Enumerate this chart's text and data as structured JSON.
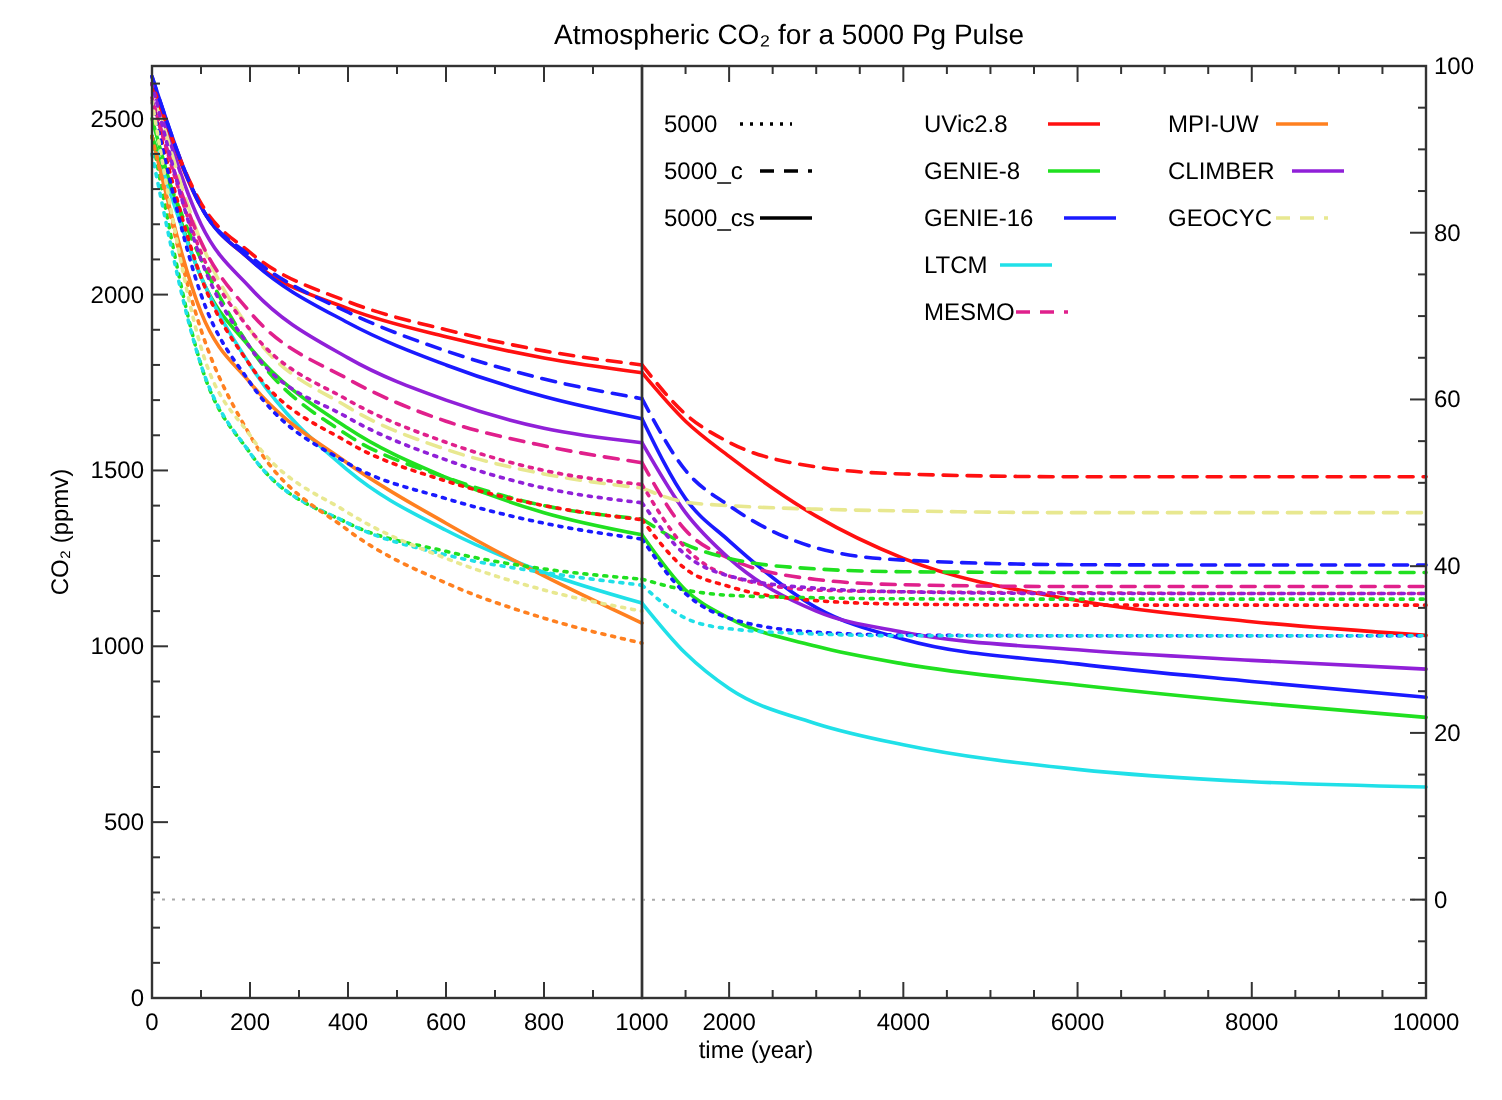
{
  "chart_data": [
    {
      "type": "line",
      "ylabel": "CO₂ (ppmv)",
      "x": [
        0,
        100,
        200,
        400,
        600,
        800,
        1000
      ],
      "xlim": [
        0,
        1000
      ],
      "xticks": [
        0,
        {
          "value": 100,
          "label": null
        },
        200,
        {
          "value": 300,
          "label": null
        },
        400,
        {
          "value": 500,
          "label": null
        },
        600,
        {
          "value": 700,
          "label": null
        },
        800,
        {
          "value": 900,
          "label": null
        },
        1000
      ],
      "ylim": [
        0,
        2650
      ],
      "yticks": [
        0,
        {
          "value": 100,
          "label": null
        },
        {
          "value": 200,
          "label": null
        },
        {
          "value": 300,
          "label": null
        },
        {
          "value": 400,
          "label": null
        },
        500,
        {
          "value": 600,
          "label": null
        },
        {
          "value": 700,
          "label": null
        },
        {
          "value": 800,
          "label": null
        },
        {
          "value": 900,
          "label": null
        },
        1000,
        {
          "value": 1100,
          "label": null
        },
        {
          "value": 1200,
          "label": null
        },
        {
          "value": 1300,
          "label": null
        },
        {
          "value": 1400,
          "label": null
        },
        1500,
        {
          "value": 1600,
          "label": null
        },
        {
          "value": 1700,
          "label": null
        },
        {
          "value": 1800,
          "label": null
        },
        {
          "value": 1900,
          "label": null
        },
        2000,
        {
          "value": 2100,
          "label": null
        },
        {
          "value": 2200,
          "label": null
        },
        {
          "value": 2300,
          "label": null
        },
        {
          "value": 2400,
          "label": null
        },
        2500,
        {
          "value": 2600,
          "label": null
        }
      ],
      "ref_lines": [
        {
          "axis": "y",
          "value": 280,
          "color": "#aaaaaa",
          "line_style": "dotted"
        }
      ],
      "grid": false,
      "series": [
        {
          "color": "#ff1010",
          "line_style": "solid",
          "values": [
            2600,
            2250,
            2100,
            1960,
            1880,
            1820,
            1778
          ]
        },
        {
          "color": "#20e020",
          "line_style": "solid",
          "values": [
            2500,
            2050,
            1850,
            1620,
            1480,
            1380,
            1317
          ]
        },
        {
          "color": "#1a1aff",
          "line_style": "solid",
          "values": [
            2620,
            2250,
            2100,
            1920,
            1800,
            1710,
            1647
          ]
        },
        {
          "color": "#20e0e8",
          "line_style": "solid",
          "values": [
            2450,
            2050,
            1800,
            1500,
            1330,
            1210,
            1123
          ]
        },
        {
          "color": "#ff8020",
          "line_style": "solid",
          "values": [
            2450,
            1950,
            1750,
            1520,
            1350,
            1200,
            1066
          ]
        },
        {
          "color": "#9020d8",
          "line_style": "solid",
          "values": [
            2600,
            2200,
            2020,
            1820,
            1700,
            1620,
            1579
          ]
        },
        {
          "color": "#e8e890",
          "line_style": "dashed",
          "values": [
            2600,
            2150,
            1900,
            1680,
            1560,
            1490,
            1450
          ]
        },
        {
          "color": "#ff1010",
          "line_style": "dashed",
          "values": [
            2600,
            2260,
            2120,
            1980,
            1900,
            1840,
            1800
          ]
        },
        {
          "color": "#20e020",
          "line_style": "dashed",
          "values": [
            2450,
            2100,
            1850,
            1600,
            1480,
            1400,
            1362
          ]
        },
        {
          "color": "#1a1aff",
          "line_style": "dashed",
          "values": [
            2620,
            2250,
            2110,
            1950,
            1840,
            1760,
            1704
          ]
        },
        {
          "color": "#e0208c",
          "line_style": "dashed",
          "values": [
            2550,
            2150,
            1950,
            1760,
            1640,
            1570,
            1522
          ]
        },
        {
          "color": "#ff1010",
          "line_style": "dotted",
          "values": [
            2550,
            2050,
            1800,
            1580,
            1470,
            1400,
            1360
          ]
        },
        {
          "color": "#20e020",
          "line_style": "dotted",
          "values": [
            2450,
            1800,
            1550,
            1350,
            1270,
            1220,
            1191
          ]
        },
        {
          "color": "#1a1aff",
          "line_style": "dotted",
          "values": [
            2550,
            2000,
            1750,
            1520,
            1420,
            1350,
            1305
          ]
        },
        {
          "color": "#20e0e8",
          "line_style": "dotted",
          "values": [
            2400,
            1800,
            1550,
            1350,
            1260,
            1210,
            1174
          ]
        },
        {
          "color": "#e0208c",
          "line_style": "dotted",
          "values": [
            2560,
            2120,
            1900,
            1700,
            1580,
            1500,
            1460
          ]
        },
        {
          "color": "#9020d8",
          "line_style": "dotted",
          "values": [
            2600,
            2100,
            1850,
            1650,
            1530,
            1450,
            1408
          ]
        },
        {
          "color": "#ff8020",
          "line_style": "dotted",
          "values": [
            2450,
            1900,
            1600,
            1330,
            1180,
            1080,
            1009
          ]
        },
        {
          "color": "#e8e890",
          "line_style": "dotted",
          "values": [
            2550,
            1850,
            1600,
            1380,
            1250,
            1160,
            1100
          ]
        }
      ]
    },
    {
      "type": "line",
      "title": "Atmospheric CO₂ for a 5000 Pg Pulse",
      "xlabel": "time (year)",
      "x": [
        1000,
        1500,
        2000,
        3000,
        4000,
        6000,
        8000,
        10000
      ],
      "xlim": [
        1000,
        10000
      ],
      "xticks": [
        {
          "value": 1500,
          "label": null
        },
        2000,
        {
          "value": 2500,
          "label": null
        },
        {
          "value": 3000,
          "label": null
        },
        {
          "value": 3500,
          "label": null
        },
        4000,
        {
          "value": 4500,
          "label": null
        },
        {
          "value": 5000,
          "label": null
        },
        {
          "value": 5500,
          "label": null
        },
        6000,
        {
          "value": 6500,
          "label": null
        },
        {
          "value": 7000,
          "label": null
        },
        {
          "value": 7500,
          "label": null
        },
        8000,
        {
          "value": 8500,
          "label": null
        },
        {
          "value": 9000,
          "label": null
        },
        {
          "value": 9500,
          "label": null
        },
        10000
      ],
      "ylim": [
        0,
        2650
      ],
      "y2lim": [
        -11.8,
        100
      ],
      "y2ticks": [
        {
          "value": -10,
          "label": null
        },
        {
          "value": -5,
          "label": null
        },
        0,
        {
          "value": 5,
          "label": null
        },
        {
          "value": 10,
          "label": null
        },
        {
          "value": 15,
          "label": null
        },
        20,
        {
          "value": 25,
          "label": null
        },
        {
          "value": 30,
          "label": null
        },
        {
          "value": 35,
          "label": null
        },
        40,
        {
          "value": 45,
          "label": null
        },
        {
          "value": 50,
          "label": null
        },
        {
          "value": 55,
          "label": null
        },
        60,
        {
          "value": 65,
          "label": null
        },
        {
          "value": 70,
          "label": null
        },
        {
          "value": 75,
          "label": null
        },
        80,
        {
          "value": 85,
          "label": null
        },
        {
          "value": 90,
          "label": null
        },
        {
          "value": 95,
          "label": null
        },
        100
      ],
      "ref_lines": [
        {
          "axis": "y2",
          "value": 0,
          "color": "#aaaaaa",
          "line_style": "dotted"
        }
      ],
      "legend": "top right",
      "grid": false,
      "series": [
        {
          "name": "5000",
          "color": "#000000",
          "line_style": "dotted",
          "values": [
            null,
            null,
            null,
            null,
            null,
            null,
            null,
            null
          ]
        },
        {
          "name": "5000_c",
          "color": "#000000",
          "line_style": "dashed",
          "values": [
            null,
            null,
            null,
            null,
            null,
            null,
            null,
            null
          ]
        },
        {
          "name": "5000_cs",
          "color": "#000000",
          "line_style": "solid",
          "values": [
            null,
            null,
            null,
            null,
            null,
            null,
            null,
            null
          ]
        },
        {
          "name": "UVic2.8",
          "color": "#ff1010",
          "line_style": "solid",
          "values": [
            1778,
            1640,
            1540,
            1370,
            1250,
            1130,
            1070,
            1031
          ]
        },
        {
          "name": "GENIE-8",
          "color": "#20e020",
          "line_style": "solid",
          "values": [
            1317,
            1160,
            1080,
            1000,
            950,
            890,
            840,
            798
          ]
        },
        {
          "name": "GENIE-16",
          "color": "#1a1aff",
          "line_style": "solid",
          "values": [
            1647,
            1420,
            1300,
            1110,
            1020,
            950,
            900,
            855
          ]
        },
        {
          "name": "LTCM",
          "color": "#20e0e8",
          "line_style": "solid",
          "values": [
            1123,
            980,
            880,
            780,
            720,
            650,
            615,
            600
          ]
        },
        {
          "name": "MESMO",
          "color": "#e0208c",
          "line_style": "dashed",
          "values": [
            1522,
            1330,
            1250,
            1190,
            1175,
            1170,
            1170,
            1170
          ]
        },
        {
          "name": "MPI-UW",
          "color": "#ff8020",
          "values": [
            null,
            null,
            null,
            null,
            null,
            null,
            null,
            null
          ]
        },
        {
          "name": "CLIMBER",
          "color": "#9020d8",
          "line_style": "solid",
          "values": [
            1579,
            1380,
            1250,
            1100,
            1040,
            990,
            960,
            935
          ]
        },
        {
          "name": "GEOCYC",
          "color": "#e8e890",
          "line_style": "dashed",
          "values": [
            1450,
            1410,
            1400,
            1390,
            1385,
            1380,
            1380,
            1380
          ]
        },
        {
          "color": "#ff1010",
          "line_style": "dashed",
          "values": [
            1800,
            1660,
            1580,
            1510,
            1490,
            1482,
            1482,
            1482
          ]
        },
        {
          "color": "#20e020",
          "line_style": "dashed",
          "values": [
            1362,
            1290,
            1250,
            1220,
            1212,
            1210,
            1210,
            1210
          ]
        },
        {
          "color": "#1a1aff",
          "line_style": "dashed",
          "values": [
            1704,
            1500,
            1400,
            1280,
            1245,
            1232,
            1231,
            1231
          ]
        },
        {
          "color": "#ff1010",
          "line_style": "dotted",
          "values": [
            1360,
            1220,
            1170,
            1130,
            1120,
            1117,
            1117,
            1117
          ]
        },
        {
          "color": "#20e020",
          "line_style": "dotted",
          "values": [
            1191,
            1160,
            1145,
            1138,
            1135,
            1134,
            1134,
            1134
          ]
        },
        {
          "color": "#1a1aff",
          "line_style": "dotted",
          "values": [
            1305,
            1150,
            1080,
            1040,
            1032,
            1030,
            1030,
            1030
          ]
        },
        {
          "color": "#20e0e8",
          "line_style": "dotted",
          "values": [
            1174,
            1080,
            1050,
            1035,
            1030,
            1030,
            1030,
            1030
          ]
        },
        {
          "color": "#e0208c",
          "line_style": "dotted",
          "values": [
            1460,
            1280,
            1200,
            1160,
            1155,
            1152,
            1150,
            1150
          ]
        },
        {
          "color": "#9020d8",
          "line_style": "dotted",
          "values": [
            1408,
            1260,
            1200,
            1165,
            1155,
            1150,
            1150,
            1150
          ]
        }
      ]
    }
  ]
}
